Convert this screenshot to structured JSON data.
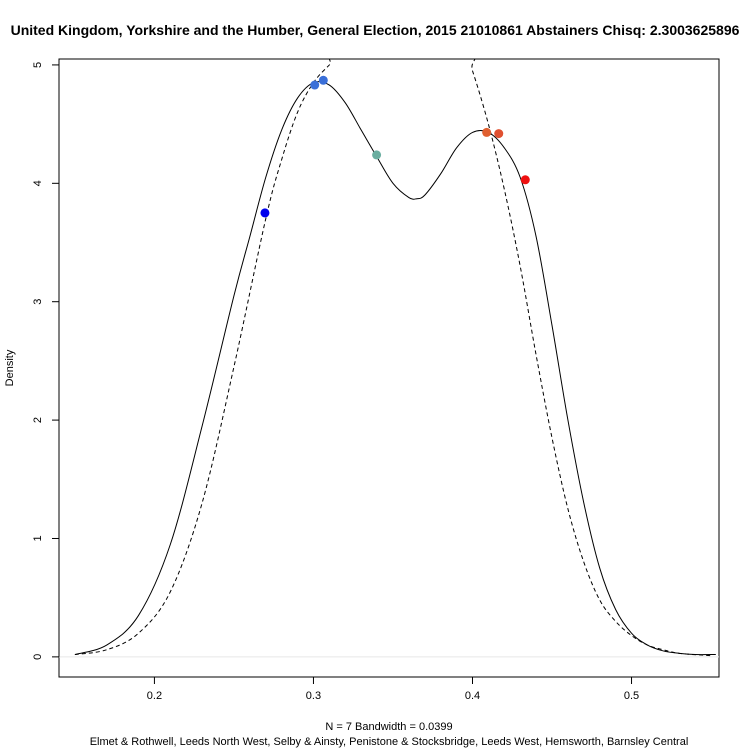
{
  "chart_data": {
    "type": "line",
    "title": "United Kingdom, Yorkshire and the Humber, General Election, 2015 21010861 Abstainers Chisq: 2.3003625896",
    "xlabel_line1": "N = 7   Bandwidth = 0.0399",
    "xlabel_line2": "Elmet & Rothwell, Leeds North West, Selby & Ainsty, Penistone & Stocksbridge, Leeds West, Hemsworth, Barnsley Central",
    "ylabel": "Density",
    "xlim": [
      0.14,
      0.555
    ],
    "ylim": [
      -0.17,
      5.05
    ],
    "x_ticks": [
      0.2,
      0.3,
      0.4,
      0.5
    ],
    "x_tick_labels": [
      "0.2",
      "0.3",
      "0.4",
      "0.5"
    ],
    "y_ticks": [
      0,
      1,
      2,
      3,
      4,
      5
    ],
    "y_tick_labels": [
      "0",
      "1",
      "2",
      "3",
      "4",
      "5"
    ],
    "grid": false,
    "series": [
      {
        "style": "solid",
        "x": [
          0.15,
          0.17,
          0.19,
          0.21,
          0.23,
          0.25,
          0.26,
          0.27,
          0.28,
          0.29,
          0.3,
          0.31,
          0.32,
          0.33,
          0.34,
          0.35,
          0.36,
          0.365,
          0.37,
          0.38,
          0.39,
          0.4,
          0.41,
          0.42,
          0.43,
          0.44,
          0.45,
          0.46,
          0.47,
          0.48,
          0.49,
          0.5,
          0.51,
          0.52,
          0.53,
          0.54,
          0.553
        ],
        "y": [
          0.02,
          0.1,
          0.35,
          0.95,
          1.95,
          3.05,
          3.55,
          4.05,
          4.45,
          4.72,
          4.85,
          4.83,
          4.68,
          4.45,
          4.22,
          4.0,
          3.88,
          3.87,
          3.9,
          4.08,
          4.3,
          4.43,
          4.43,
          4.3,
          4.05,
          3.55,
          2.8,
          2.0,
          1.3,
          0.75,
          0.4,
          0.2,
          0.1,
          0.05,
          0.03,
          0.02,
          0.02
        ]
      },
      {
        "style": "dashed",
        "x": [
          0.15,
          0.17,
          0.19,
          0.21,
          0.23,
          0.25,
          0.27,
          0.28,
          0.29,
          0.3,
          0.31,
          0.318,
          0.395,
          0.4,
          0.41,
          0.42,
          0.43,
          0.44,
          0.45,
          0.46,
          0.47,
          0.48,
          0.49,
          0.5,
          0.51,
          0.52,
          0.53,
          0.55
        ],
        "y": [
          0.02,
          0.06,
          0.2,
          0.55,
          1.3,
          2.45,
          3.7,
          4.2,
          4.6,
          4.85,
          5.0,
          5.1,
          5.1,
          4.95,
          4.5,
          3.95,
          3.3,
          2.55,
          1.85,
          1.25,
          0.8,
          0.48,
          0.3,
          0.18,
          0.1,
          0.06,
          0.03,
          0.01
        ]
      }
    ],
    "points": [
      {
        "x": 0.2695,
        "y": 3.75,
        "color": "#0000ee"
      },
      {
        "x": 0.3008,
        "y": 4.83,
        "color": "#3a6fd8"
      },
      {
        "x": 0.3062,
        "y": 4.87,
        "color": "#3a6fd8"
      },
      {
        "x": 0.3397,
        "y": 4.24,
        "color": "#6aaea0"
      },
      {
        "x": 0.4089,
        "y": 4.43,
        "color": "#e06030"
      },
      {
        "x": 0.4165,
        "y": 4.42,
        "color": "#e05030"
      },
      {
        "x": 0.4332,
        "y": 4.03,
        "color": "#ee1010"
      }
    ]
  }
}
